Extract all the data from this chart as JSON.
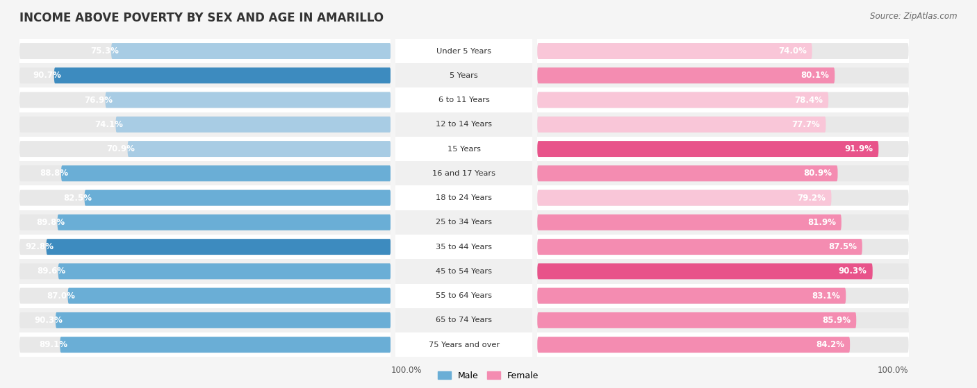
{
  "title": "INCOME ABOVE POVERTY BY SEX AND AGE IN AMARILLO",
  "source": "Source: ZipAtlas.com",
  "categories": [
    "Under 5 Years",
    "5 Years",
    "6 to 11 Years",
    "12 to 14 Years",
    "15 Years",
    "16 and 17 Years",
    "18 to 24 Years",
    "25 to 34 Years",
    "35 to 44 Years",
    "45 to 54 Years",
    "55 to 64 Years",
    "65 to 74 Years",
    "75 Years and over"
  ],
  "male_values": [
    75.3,
    90.7,
    76.9,
    74.1,
    70.9,
    88.8,
    82.5,
    89.8,
    92.8,
    89.6,
    87.0,
    90.3,
    89.1
  ],
  "female_values": [
    74.0,
    80.1,
    78.4,
    77.7,
    91.9,
    80.9,
    79.2,
    81.9,
    87.5,
    90.3,
    83.1,
    85.9,
    84.2
  ],
  "male_color_light": "#a8cce4",
  "male_color_normal": "#6aaed6",
  "male_color_dark": "#3d8bbf",
  "female_color_light": "#f9c6d8",
  "female_color_normal": "#f48cb1",
  "female_color_dark": "#e8538a",
  "bg_color": "#f5f5f5",
  "bar_bg_color": "#e8e8e8",
  "row_bg_white": "#ffffff",
  "row_bg_gray": "#f0f0f0",
  "highlight_male": [
    1,
    8
  ],
  "highlight_female": [
    4,
    9
  ],
  "title_color": "#333333",
  "source_color": "#666666",
  "label_color": "#333333",
  "value_color": "#ffffff",
  "axis_label": "100.0%"
}
